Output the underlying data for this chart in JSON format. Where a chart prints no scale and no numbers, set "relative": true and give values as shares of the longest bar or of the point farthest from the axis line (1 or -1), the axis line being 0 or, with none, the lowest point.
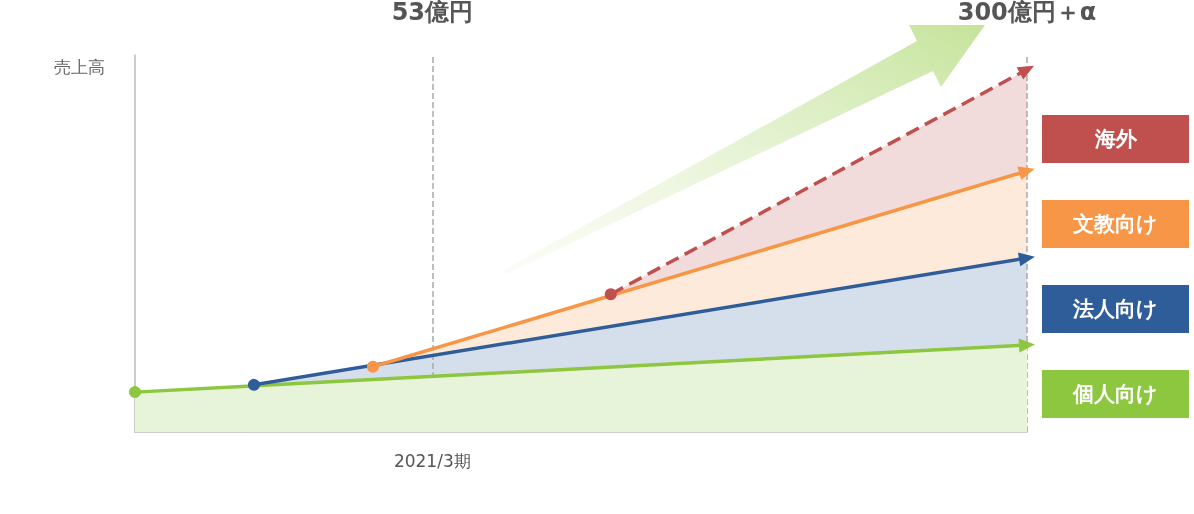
{
  "chart_data": {
    "type": "area",
    "relative": true,
    "ylabel": "売上高",
    "categories": [
      null,
      null,
      null,
      null,
      null,
      null,
      null,
      null,
      null,
      null,
      null,
      null,
      null,
      null,
      null,
      null
    ],
    "annotations": [
      "53億円",
      "300億円＋α",
      "2021/3期"
    ],
    "series": [
      {
        "name": "海外",
        "color": "#c0504d",
        "line_style": "dashed",
        "values": [
          null,
          null,
          null,
          null,
          null,
          null,
          null,
          null,
          0.38,
          null,
          null,
          null,
          null,
          null,
          null,
          1.0
        ]
      },
      {
        "name": "文教向け",
        "color": "#f79646",
        "values": [
          null,
          null,
          null,
          null,
          0.18,
          null,
          null,
          null,
          null,
          null,
          null,
          null,
          null,
          null,
          null,
          0.72
        ]
      },
      {
        "name": "法人向け",
        "color": "#2f5d9a",
        "values": [
          null,
          null,
          0.13,
          null,
          null,
          null,
          null,
          null,
          null,
          null,
          null,
          null,
          null,
          null,
          null,
          0.48
        ]
      },
      {
        "name": "個人向け",
        "color": "#8dc63f",
        "values": [
          0.11,
          null,
          null,
          null,
          null,
          null,
          null,
          null,
          null,
          null,
          null,
          null,
          null,
          null,
          null,
          0.24
        ]
      }
    ],
    "marker": "circle",
    "line_style": "solid",
    "legend": "right",
    "grid": false
  }
}
